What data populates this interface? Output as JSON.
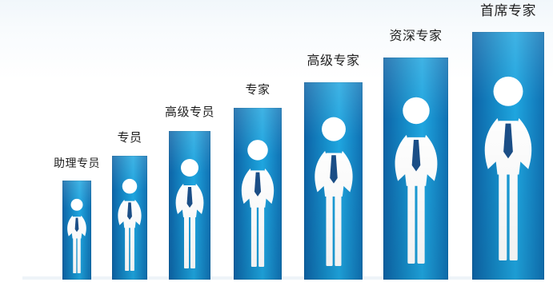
{
  "levels": [
    {
      "label": "助理专员"
    },
    {
      "label": "专员"
    },
    {
      "label": "高级专员"
    },
    {
      "label": "专家"
    },
    {
      "label": "高级专家"
    },
    {
      "label": "资深专家"
    },
    {
      "label": "首席专家"
    }
  ],
  "colors": {
    "pillar_dark": "#0d63a6",
    "pillar_light": "#1fa6e0",
    "figure": "#ffffff",
    "tie": "#1b4f88",
    "label_text": "#1f1f1f"
  },
  "icons": {
    "figure": "businessman-icon"
  }
}
